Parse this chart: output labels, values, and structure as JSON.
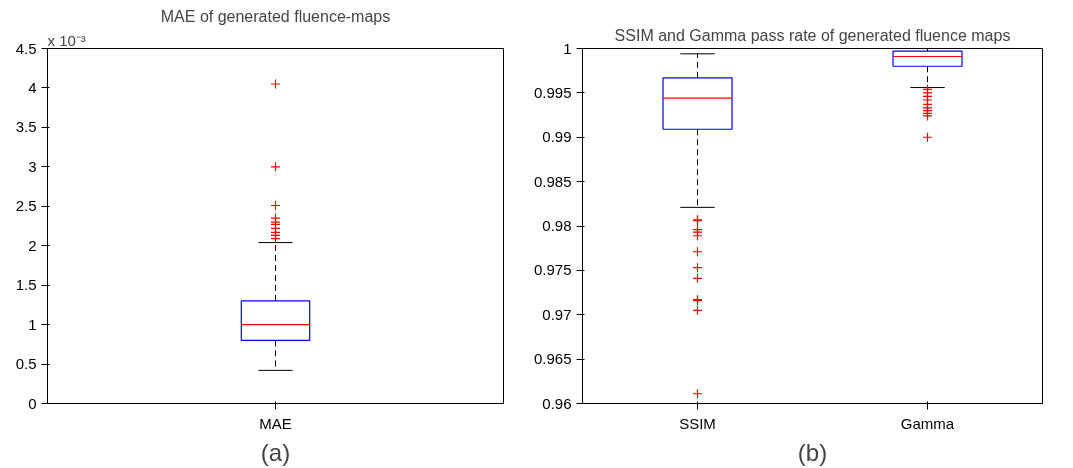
{
  "chart_data": [
    {
      "type": "box",
      "title": "MAE of generated fluence-maps",
      "categories": [
        "MAE"
      ],
      "color": "#0000ff",
      "marker": "cross",
      "grid": false,
      "boxes": [
        {
          "low": 0.42,
          "q1": 0.8,
          "median": 1.0,
          "q3": 1.3,
          "high": 2.04,
          "outliers": [
            4.05,
            3.0,
            2.51,
            2.35,
            2.3,
            2.27,
            2.22,
            2.17,
            2.13,
            2.09
          ]
        }
      ],
      "ylim": [
        0,
        4.5
      ],
      "yticks": [
        0,
        0.5,
        1,
        1.5,
        2,
        2.5,
        3,
        3.5,
        4,
        4.5
      ],
      "annotations": [
        "x 10⁻³",
        "(a)"
      ]
    },
    {
      "type": "box",
      "title": "SSIM and Gamma pass rate of generated fluence maps",
      "categories": [
        "SSIM",
        "Gamma"
      ],
      "color": "#0000ff",
      "marker": "cross",
      "grid": false,
      "boxes": [
        {
          "low": 0.9821,
          "q1": 0.9909,
          "median": 0.9944,
          "q3": 0.9967,
          "high": 0.9994,
          "outliers": [
            0.9807,
            0.9806,
            0.9796,
            0.9793,
            0.9789,
            0.9771,
            0.9753,
            0.9741,
            0.9717,
            0.9716,
            0.9705,
            0.9611
          ]
        },
        {
          "low": 0.9956,
          "q1": 0.998,
          "median": 0.9991,
          "q3": 0.9997,
          "high": 1.0,
          "outliers": [
            0.9954,
            0.995,
            0.9946,
            0.9942,
            0.9937,
            0.9933,
            0.993,
            0.9927,
            0.9924,
            0.99
          ]
        }
      ],
      "ylim": [
        0.96,
        1
      ],
      "yticks": [
        0.96,
        0.965,
        0.97,
        0.975,
        0.98,
        0.985,
        0.99,
        0.995,
        1
      ],
      "annotations": [
        "(b)"
      ]
    }
  ]
}
